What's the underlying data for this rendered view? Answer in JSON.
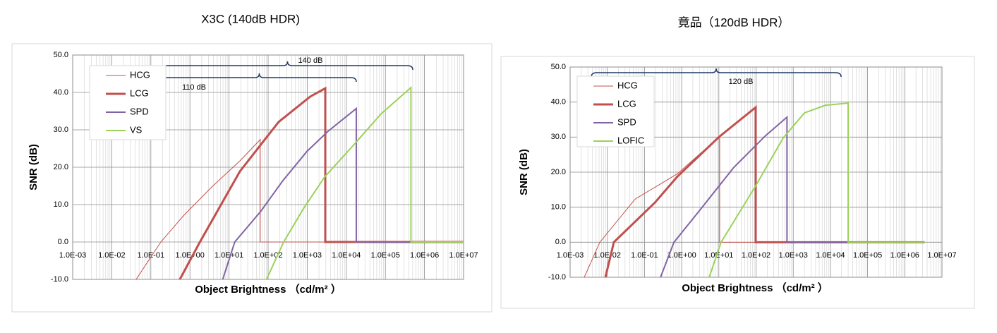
{
  "chart_data": [
    {
      "type": "line",
      "title": "X3C (140dB HDR)",
      "xlabel": "Object Brightness （cd/m² ）",
      "ylabel": "SNR (dB)",
      "xscale": "log",
      "xlim": [
        0.001,
        10000000
      ],
      "ylim": [
        -10,
        50
      ],
      "grid": true,
      "legend": "upper-left",
      "xticks": [
        {
          "value": 0.001,
          "label": "1.0E-03"
        },
        {
          "value": 0.01,
          "label": "1.0E-02"
        },
        {
          "value": 0.1,
          "label": "1.0E-01"
        },
        {
          "value": 1,
          "label": "1.0E+00"
        },
        {
          "value": 10,
          "label": "1.0E+01"
        },
        {
          "value": 100,
          "label": "1.0E+02"
        },
        {
          "value": 1000,
          "label": "1.0E+03"
        },
        {
          "value": 10000,
          "label": "1.0E+04"
        },
        {
          "value": 100000,
          "label": "1.0E+05"
        },
        {
          "value": 1000000,
          "label": "1.0E+06"
        },
        {
          "value": 10000000,
          "label": "1.0E+07"
        }
      ],
      "yticks": [
        {
          "value": -10,
          "label": "-10.0"
        },
        {
          "value": 0,
          "label": "0.0"
        },
        {
          "value": 10,
          "label": "10.0"
        },
        {
          "value": 20,
          "label": "20.0"
        },
        {
          "value": 30,
          "label": "30.0"
        },
        {
          "value": 40,
          "label": "40.0"
        },
        {
          "value": 50,
          "label": "50.0"
        }
      ],
      "annotations": [
        "140 dB",
        "110 dB"
      ],
      "series": [
        {
          "name": "HCG",
          "color": "#c0504d",
          "line_width": 1,
          "x": [
            0.042,
            0.18,
            0.68,
            3.6,
            19,
            63,
            63,
            10000000
          ],
          "values": [
            -10,
            0,
            7,
            14.7,
            21.7,
            27.4,
            0,
            0
          ]
        },
        {
          "name": "LCG",
          "color": "#c0504d",
          "line_width": 3,
          "x": [
            0.55,
            1.8,
            19,
            186,
            1200,
            2900,
            2900,
            10000000
          ],
          "values": [
            -10,
            0,
            18.9,
            32.1,
            38.9,
            41.1,
            0,
            0
          ]
        },
        {
          "name": "SPD",
          "color": "#8064a2",
          "line_width": 2,
          "x": [
            6.9,
            14,
            66,
            230,
            980,
            3400,
            18000,
            18000,
            10000000
          ],
          "values": [
            -10,
            0,
            8.3,
            16.2,
            24.2,
            29.6,
            35.7,
            0,
            0
          ]
        },
        {
          "name": "VS",
          "color": "#9bd25a",
          "line_width": 2,
          "x": [
            91,
            250,
            800,
            2800,
            15000,
            78000,
            450000,
            450000,
            10000000
          ],
          "values": [
            -10,
            0,
            8.9,
            17.4,
            25.8,
            34.3,
            41.3,
            0,
            0
          ]
        }
      ]
    },
    {
      "type": "line",
      "title": "竟品（120dB HDR）",
      "xlabel": "Object Brightness （cd/m² ）",
      "ylabel": "SNR (dB)",
      "xscale": "log",
      "xlim": [
        0.001,
        10000000
      ],
      "ylim": [
        -10,
        50
      ],
      "grid": true,
      "legend": "upper-left",
      "xticks": [
        {
          "value": 0.001,
          "label": "1.0E-03"
        },
        {
          "value": 0.01,
          "label": "1.0E-02"
        },
        {
          "value": 0.1,
          "label": "1.0E-01"
        },
        {
          "value": 1,
          "label": "1.0E+00"
        },
        {
          "value": 10,
          "label": "1.0E+01"
        },
        {
          "value": 100,
          "label": "1.0E+02"
        },
        {
          "value": 1000,
          "label": "1.0E+03"
        },
        {
          "value": 10000,
          "label": "1.0E+04"
        },
        {
          "value": 100000,
          "label": "1.0E+05"
        },
        {
          "value": 1000000,
          "label": "1.0E+06"
        },
        {
          "value": 10000000,
          "label": "1.0E+07"
        }
      ],
      "yticks": [
        {
          "value": -10,
          "label": "-10.0"
        },
        {
          "value": 0,
          "label": "0.0"
        },
        {
          "value": 10,
          "label": "10.0"
        },
        {
          "value": 20,
          "label": "20.0"
        },
        {
          "value": 30,
          "label": "30.0"
        },
        {
          "value": 40,
          "label": "40.0"
        },
        {
          "value": 50,
          "label": "50.0"
        }
      ],
      "annotations": [
        "120 dB"
      ],
      "series": [
        {
          "name": "HCG",
          "color": "#c0504d",
          "line_width": 1,
          "x": [
            0.0024,
            0.0063,
            0.056,
            0.76,
            10.5,
            10.5,
            3400000
          ],
          "values": [
            -10,
            0,
            12.3,
            19.5,
            30.2,
            0,
            0
          ]
        },
        {
          "name": "LCG",
          "color": "#c0504d",
          "line_width": 3,
          "x": [
            0.0089,
            0.015,
            0.19,
            0.76,
            10.5,
            98,
            98,
            3400000
          ],
          "values": [
            -10,
            0,
            11.3,
            18.7,
            30.2,
            38.5,
            0,
            0
          ]
        },
        {
          "name": "SPD",
          "color": "#8064a2",
          "line_width": 2,
          "x": [
            0.27,
            0.62,
            2.8,
            25,
            180,
            680,
            680,
            3400000
          ],
          "values": [
            -10,
            0,
            8.6,
            21.3,
            30.4,
            35.7,
            0,
            0
          ]
        },
        {
          "name": "LOFIC",
          "color": "#9bd25a",
          "line_width": 2,
          "x": [
            5.5,
            11.5,
            93,
            540,
            2000,
            7400,
            30000,
            30000,
            3400000
          ],
          "values": [
            -10,
            0,
            15.7,
            29.8,
            36.9,
            39.1,
            39.7,
            0,
            0
          ]
        }
      ]
    }
  ]
}
